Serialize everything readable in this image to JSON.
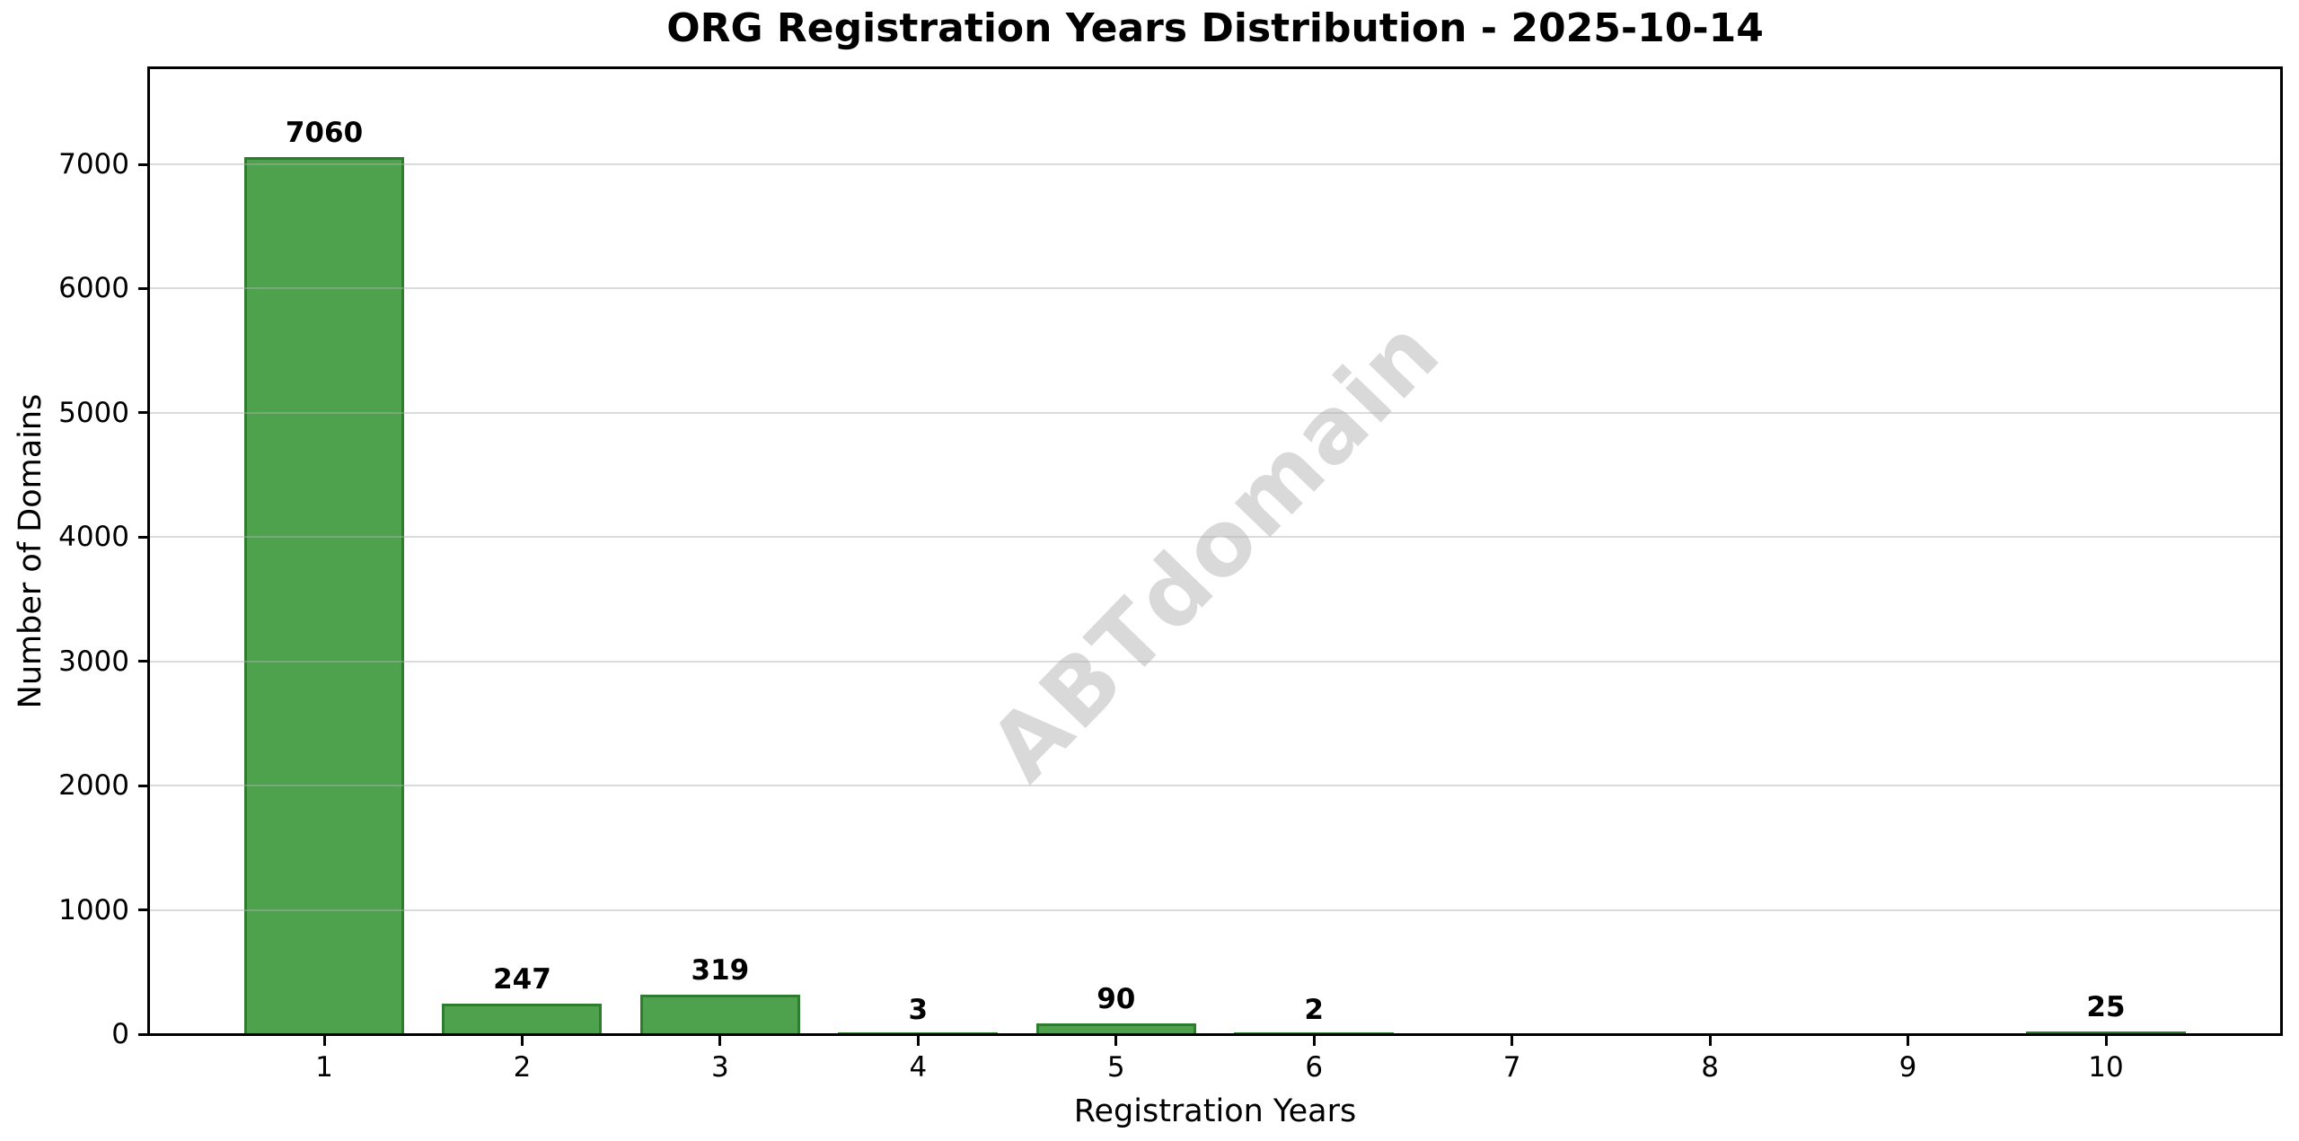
{
  "chart_data": {
    "type": "bar",
    "title": "ORG Registration Years Distribution - 2025-10-14",
    "xlabel": "Registration Years",
    "ylabel": "Number of Domains",
    "categories": [
      "1",
      "2",
      "3",
      "4",
      "5",
      "6",
      "7",
      "8",
      "9",
      "10"
    ],
    "values": [
      7060,
      247,
      319,
      3,
      90,
      2,
      0,
      0,
      0,
      25
    ],
    "bar_labels": [
      "7060",
      "247",
      "319",
      "3",
      "90",
      "2",
      "",
      "",
      "",
      "25"
    ],
    "yticks": [
      0,
      1000,
      2000,
      3000,
      4000,
      5000,
      6000,
      7000
    ],
    "ylim": [
      0,
      7773
    ],
    "grid": "horizontal",
    "legend_position": "none",
    "watermark": "ABTdomain",
    "colors": {
      "bar_fill": "#4ea24e",
      "bar_edge": "#2e7d2e",
      "gridline": "rgba(176,176,176,0.45)",
      "axis": "#000000",
      "watermark": "#d9d9d9",
      "background": "#ffffff"
    }
  }
}
